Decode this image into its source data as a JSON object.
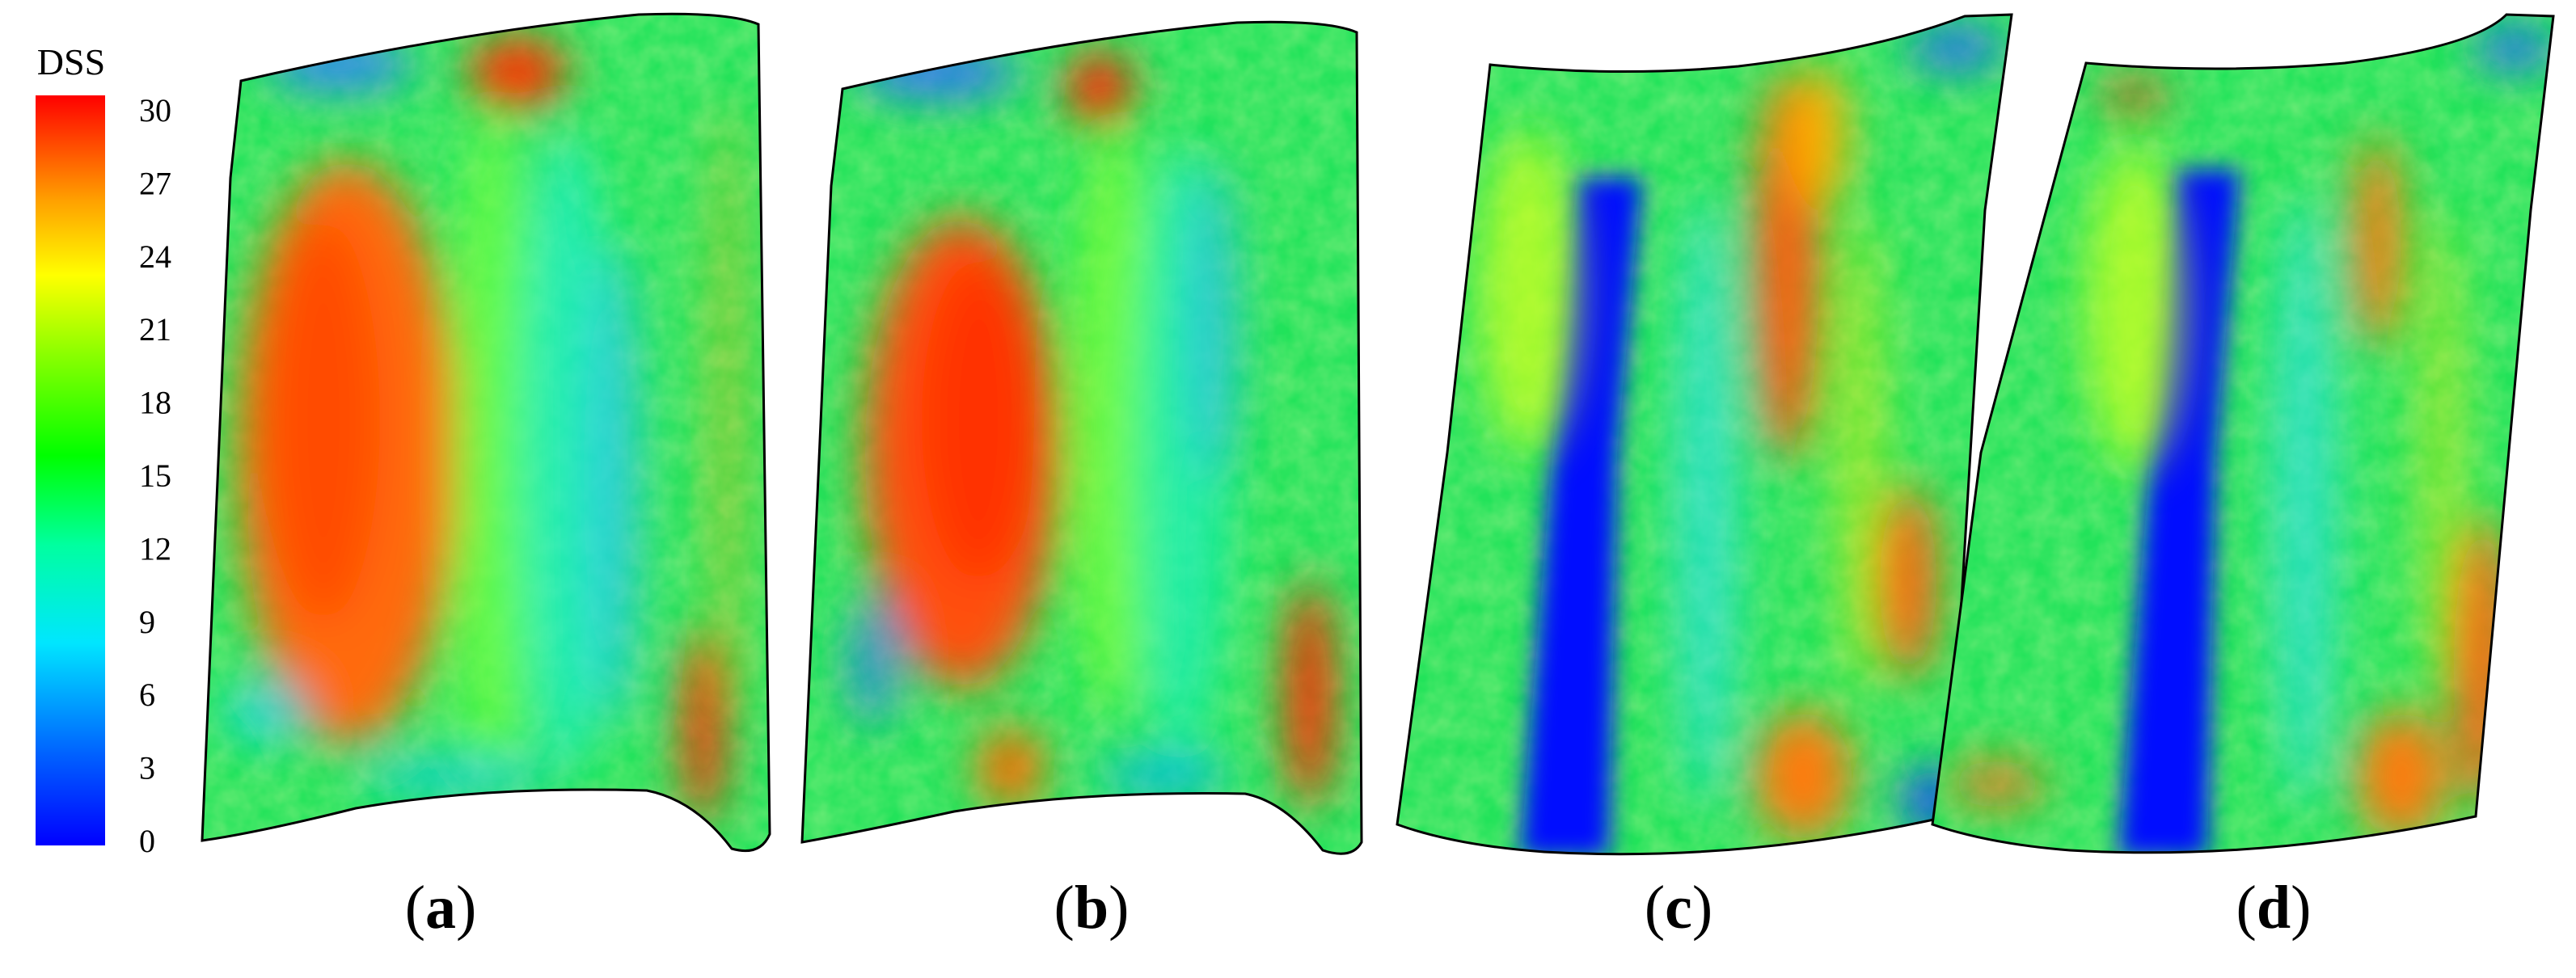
{
  "colorbar": {
    "title": "DSS",
    "min": 0,
    "max": 30,
    "ticks": [
      "30",
      "27",
      "24",
      "21",
      "18",
      "15",
      "12",
      "9",
      "6",
      "3",
      "0"
    ],
    "colormap": [
      "#0000ff",
      "#0080ff",
      "#00e6ff",
      "#00ff80",
      "#00ff00",
      "#80ff00",
      "#ffff00",
      "#ff8000",
      "#ff0000"
    ]
  },
  "panels": [
    {
      "id": "a",
      "label": "a"
    },
    {
      "id": "b",
      "label": "b"
    },
    {
      "id": "c",
      "label": "c"
    },
    {
      "id": "d",
      "label": "d"
    }
  ]
}
